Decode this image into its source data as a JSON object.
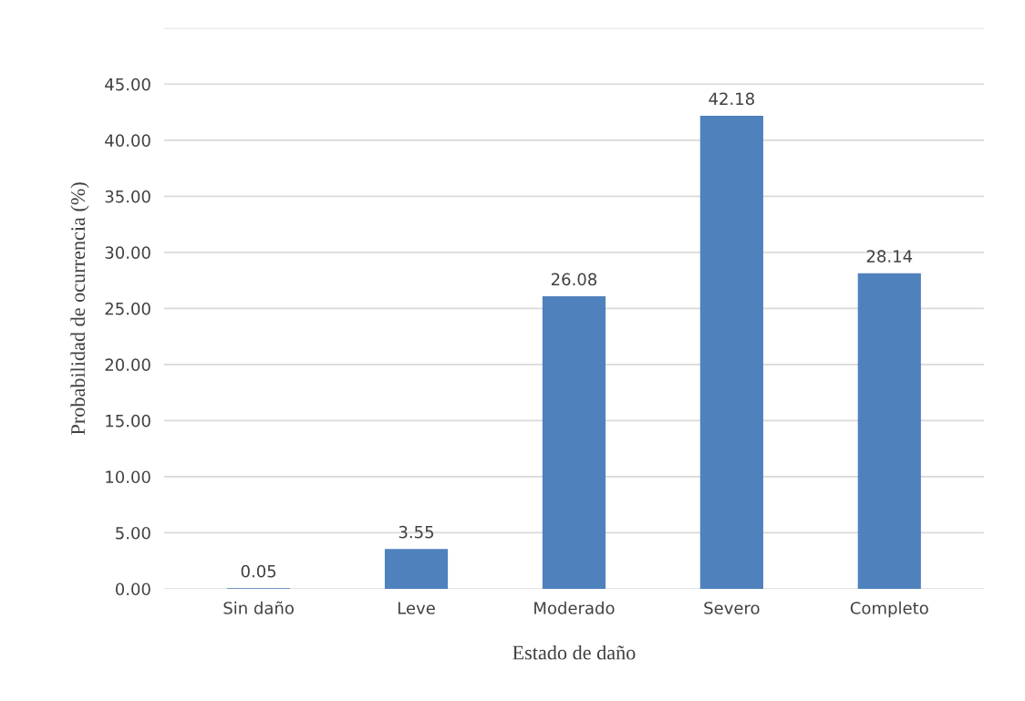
{
  "chart_data": {
    "type": "bar",
    "xlabel": "Estado de daño",
    "ylabel": "Probabilidad de ocurrencia (%)",
    "categories": [
      "Sin daño",
      "Leve",
      "Moderado",
      "Severo",
      "Completo"
    ],
    "values": [
      0.05,
      3.55,
      26.08,
      42.18,
      28.14
    ],
    "color": "#4f81bd",
    "ylim": [
      0,
      50
    ],
    "yticks": [
      {
        "value": 0,
        "label": "0.00"
      },
      {
        "value": 5,
        "label": "5.00"
      },
      {
        "value": 10,
        "label": "10.00"
      },
      {
        "value": 15,
        "label": "15.00"
      },
      {
        "value": 20,
        "label": "20.00"
      },
      {
        "value": 25,
        "label": "25.00"
      },
      {
        "value": 30,
        "label": "30.00"
      },
      {
        "value": 35,
        "label": "35.00"
      },
      {
        "value": 40,
        "label": "40.00"
      },
      {
        "value": 45,
        "label": "45.00"
      },
      {
        "value": 50,
        "label": null
      }
    ],
    "grid": "y",
    "data_labels": true,
    "legend": false
  }
}
